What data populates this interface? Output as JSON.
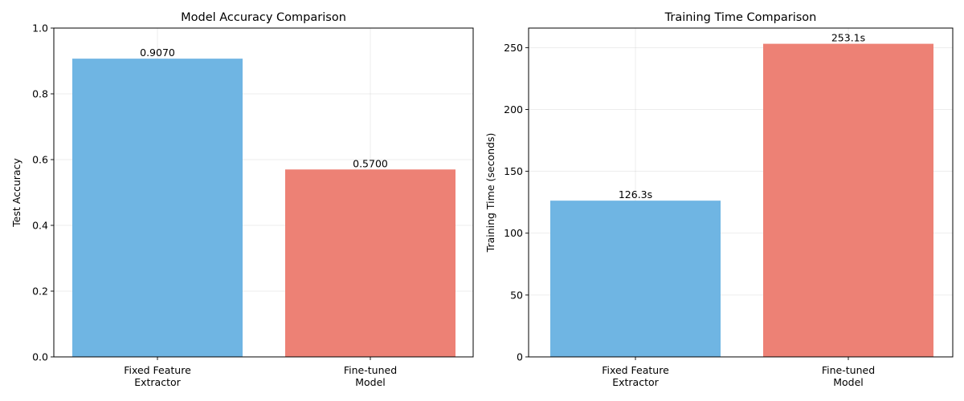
{
  "chart_data": [
    {
      "type": "bar",
      "title": "Model Accuracy Comparison",
      "xlabel": "",
      "ylabel": "Test Accuracy",
      "categories": [
        [
          "Fixed Feature",
          "Extractor"
        ],
        [
          "Fine-tuned",
          "Model"
        ]
      ],
      "values": [
        0.907,
        0.57
      ],
      "value_labels": [
        "0.9070",
        "0.5700"
      ],
      "colors": [
        "#6fb5e3",
        "#ed8175"
      ],
      "ylim": [
        0,
        1.0
      ],
      "yticks": [
        0.0,
        0.2,
        0.4,
        0.6,
        0.8,
        1.0
      ],
      "ytick_labels": [
        "0.0",
        "0.2",
        "0.4",
        "0.6",
        "0.8",
        "1.0"
      ],
      "grid": true
    },
    {
      "type": "bar",
      "title": "Training Time Comparison",
      "xlabel": "",
      "ylabel": "Training Time (seconds)",
      "categories": [
        [
          "Fixed Feature",
          "Extractor"
        ],
        [
          "Fine-tuned",
          "Model"
        ]
      ],
      "values": [
        126.3,
        253.1
      ],
      "value_labels": [
        "126.3s",
        "253.1s"
      ],
      "colors": [
        "#6fb5e3",
        "#ed8175"
      ],
      "ylim": [
        0,
        265.8
      ],
      "yticks": [
        0,
        50,
        100,
        150,
        200,
        250
      ],
      "ytick_labels": [
        "0",
        "50",
        "100",
        "150",
        "200",
        "250"
      ],
      "grid": true
    }
  ]
}
